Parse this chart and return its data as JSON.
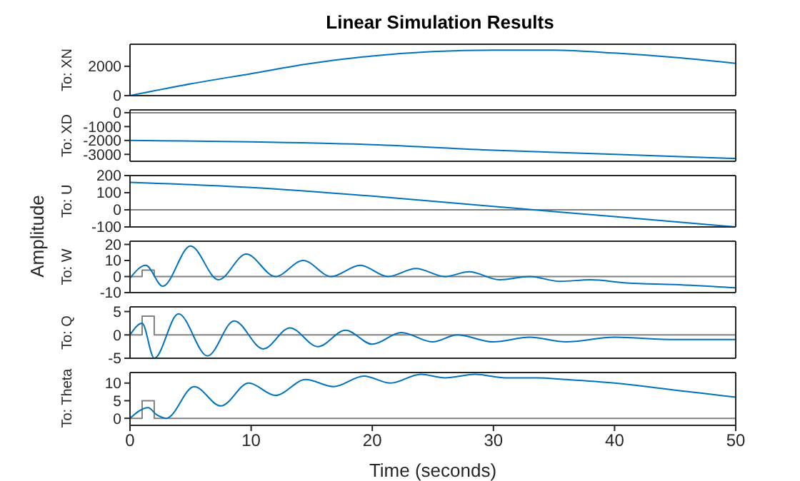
{
  "chart_data": [
    {
      "type": "line",
      "title": "Linear Simulation Results",
      "ylabel": "To: XN",
      "annotations": [
        "Amplitude"
      ],
      "xlim": [
        0,
        50
      ],
      "xticks": [
        0,
        10,
        20,
        30,
        40,
        50
      ],
      "ylim": [
        0,
        3500
      ],
      "yticks": [
        0,
        2000
      ],
      "tick_labels": "y",
      "series": [
        {
          "color": "#0072bd",
          "x": [
            0,
            5,
            10,
            15,
            20,
            25,
            30,
            35,
            40,
            45,
            50
          ],
          "values": [
            0,
            800,
            1500,
            2200,
            2700,
            3000,
            3100,
            3100,
            2900,
            2600,
            2200
          ]
        }
      ]
    },
    {
      "type": "line",
      "ylabel": "To: XD",
      "xlim": [
        0,
        50
      ],
      "xticks": [
        0,
        10,
        20,
        30,
        40,
        50
      ],
      "ylim": [
        -3500,
        200
      ],
      "yticks": [
        -3000,
        -2000,
        -1000,
        0
      ],
      "tick_labels": "y",
      "series": [
        {
          "type": "step",
          "color": "#808080",
          "x": [
            0,
            50
          ],
          "values": [
            0,
            0
          ]
        },
        {
          "color": "#0072bd",
          "x": [
            0,
            10,
            20,
            30,
            40,
            50
          ],
          "values": [
            -2000,
            -2100,
            -2300,
            -2700,
            -3000,
            -3300
          ]
        }
      ]
    },
    {
      "type": "line",
      "ylabel": "To: U",
      "xlim": [
        0,
        50
      ],
      "xticks": [
        0,
        10,
        20,
        30,
        40,
        50
      ],
      "ylim": [
        -100,
        200
      ],
      "yticks": [
        -100,
        0,
        100,
        200
      ],
      "tick_labels": "y",
      "series": [
        {
          "type": "step",
          "color": "#808080",
          "x": [
            0,
            50
          ],
          "values": [
            0,
            0
          ]
        },
        {
          "color": "#0072bd",
          "x": [
            0,
            10,
            20,
            30,
            35,
            40,
            50
          ],
          "values": [
            160,
            130,
            80,
            20,
            -10,
            -40,
            -100
          ]
        }
      ]
    },
    {
      "type": "line",
      "ylabel": "To: W",
      "xlim": [
        0,
        50
      ],
      "xticks": [
        0,
        10,
        20,
        30,
        40,
        50
      ],
      "ylim": [
        -10,
        22
      ],
      "yticks": [
        -10,
        0,
        10,
        20
      ],
      "tick_labels": "y",
      "series": [
        {
          "type": "step",
          "color": "#808080",
          "x": [
            0,
            1,
            2,
            50
          ],
          "values": [
            0,
            4,
            0,
            0
          ]
        },
        {
          "color": "#0072bd",
          "x": [
            0,
            1.3,
            2.7,
            5,
            7.3,
            9.6,
            12,
            14.3,
            16.6,
            19,
            21.3,
            23.6,
            26,
            28,
            30.5,
            33,
            35.5,
            38,
            41,
            45,
            50
          ],
          "values": [
            -1,
            7,
            -6,
            19,
            -2,
            14,
            0,
            10,
            0,
            7,
            0,
            5,
            0,
            3,
            -2,
            0,
            -3,
            -2,
            -4,
            -5,
            -7
          ]
        }
      ]
    },
    {
      "type": "line",
      "ylabel": "To: Q",
      "xlim": [
        0,
        50
      ],
      "xticks": [
        0,
        10,
        20,
        30,
        40,
        50
      ],
      "ylim": [
        -5,
        6
      ],
      "yticks": [
        -5,
        0,
        5
      ],
      "tick_labels": "y",
      "series": [
        {
          "type": "step",
          "color": "#808080",
          "x": [
            0,
            1,
            2,
            50
          ],
          "values": [
            0,
            4,
            0,
            0
          ]
        },
        {
          "color": "#0072bd",
          "x": [
            0,
            1,
            2,
            4,
            6.4,
            8.6,
            11,
            13.2,
            15.5,
            17.8,
            20,
            22.4,
            25,
            27,
            30,
            33,
            36,
            40,
            45,
            50
          ],
          "values": [
            0,
            2.5,
            -5,
            4.5,
            -4.5,
            3,
            -3,
            1.5,
            -2.5,
            1,
            -2,
            0.5,
            -1.5,
            0,
            -1.5,
            -0.5,
            -1.5,
            -0.5,
            -1,
            -1
          ]
        }
      ]
    },
    {
      "type": "line",
      "ylabel": "To: Theta",
      "xlabel": "Time (seconds)",
      "xlim": [
        0,
        50
      ],
      "xticks": [
        0,
        10,
        20,
        30,
        40,
        50
      ],
      "ylim": [
        -2,
        13
      ],
      "yticks": [
        0,
        5,
        10
      ],
      "series": [
        {
          "type": "step",
          "color": "#808080",
          "x": [
            0,
            1,
            2,
            50
          ],
          "values": [
            0,
            5,
            0,
            0
          ]
        },
        {
          "color": "#0072bd",
          "x": [
            0,
            1.5,
            2.2,
            3,
            5.3,
            7.5,
            9.8,
            12,
            14.5,
            16.8,
            19.3,
            21.5,
            24,
            26,
            28.5,
            31,
            33.5,
            36,
            40,
            45,
            50
          ],
          "values": [
            0,
            3,
            1,
            0,
            9,
            3.5,
            10,
            6.5,
            11,
            9,
            12,
            10,
            12.5,
            11.5,
            12.5,
            11.5,
            11.5,
            11,
            10,
            8,
            6
          ]
        }
      ]
    }
  ]
}
